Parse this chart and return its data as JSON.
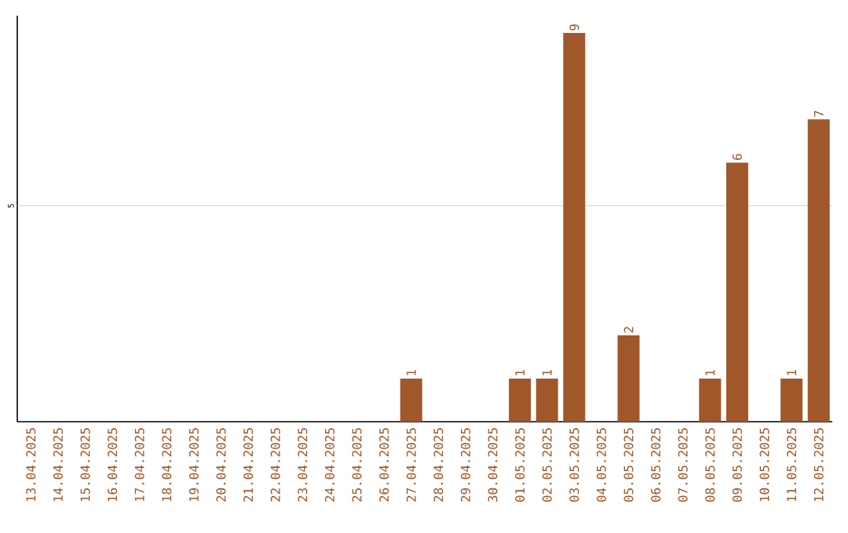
{
  "chart_data": {
    "type": "bar",
    "categories": [
      "13.04.2025",
      "14.04.2025",
      "15.04.2025",
      "16.04.2025",
      "17.04.2025",
      "18.04.2025",
      "19.04.2025",
      "20.04.2025",
      "21.04.2025",
      "22.04.2025",
      "23.04.2025",
      "24.04.2025",
      "25.04.2025",
      "26.04.2025",
      "27.04.2025",
      "28.04.2025",
      "29.04.2025",
      "30.04.2025",
      "01.05.2025",
      "02.05.2025",
      "03.05.2025",
      "04.05.2025",
      "05.05.2025",
      "06.05.2025",
      "07.05.2025",
      "08.05.2025",
      "09.05.2025",
      "10.05.2025",
      "11.05.2025",
      "12.05.2025"
    ],
    "values": [
      null,
      null,
      null,
      null,
      null,
      null,
      null,
      null,
      null,
      null,
      null,
      null,
      null,
      null,
      1,
      null,
      null,
      null,
      1,
      1,
      9,
      null,
      2,
      null,
      null,
      1,
      6,
      null,
      1,
      7
    ],
    "data_labels": true,
    "ylim": [
      0,
      9.4
    ],
    "color": "#a0572a",
    "ref_lines": [
      {
        "axis": "y",
        "value": 5,
        "label": "5",
        "color": "#c8c8c8"
      }
    ]
  }
}
